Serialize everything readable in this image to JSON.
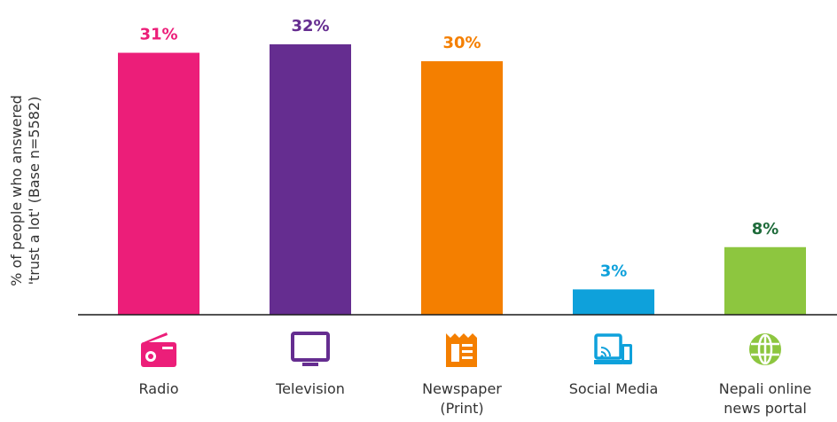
{
  "chart_data": {
    "type": "bar",
    "ylabel_lines": [
      "% of people who answered",
      "'trust a lot' (Base n=5582)"
    ],
    "ylim": [
      0,
      33
    ],
    "grid": false,
    "categories": [
      {
        "label_lines": [
          "Radio"
        ],
        "value": 31,
        "display": "31%",
        "color": "#ec1e79",
        "label_color": "#ec1e79",
        "icon": "radio-icon"
      },
      {
        "label_lines": [
          "Television"
        ],
        "value": 32,
        "display": "32%",
        "color": "#652d90",
        "label_color": "#652d90",
        "icon": "television-icon"
      },
      {
        "label_lines": [
          "Newspaper",
          "(Print)"
        ],
        "value": 30,
        "display": "30%",
        "color": "#f47f00",
        "label_color": "#f47f00",
        "icon": "newspaper-icon"
      },
      {
        "label_lines": [
          "Social Media"
        ],
        "value": 3,
        "display": "3%",
        "color": "#0ea1db",
        "label_color": "#0ea1db",
        "icon": "social-media-icon"
      },
      {
        "label_lines": [
          "Nepali online",
          "news portal"
        ],
        "value": 8,
        "display": "8%",
        "color": "#8dc63f",
        "label_color": "#1e6b3a",
        "icon": "globe-icon"
      }
    ]
  }
}
